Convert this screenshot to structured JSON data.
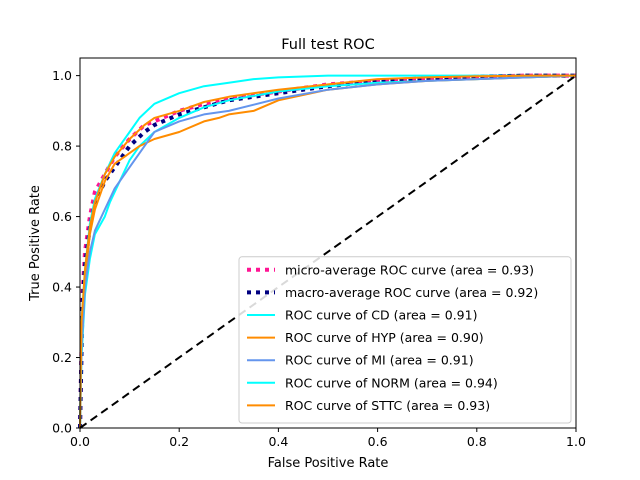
{
  "chart_data": {
    "type": "line",
    "title": "Full test ROC",
    "xlabel": "False Positive Rate",
    "ylabel": "True Positive Rate",
    "xlim": [
      0.0,
      1.0
    ],
    "ylim": [
      0.0,
      1.05
    ],
    "xticks": [
      "0.0",
      "0.2",
      "0.4",
      "0.6",
      "0.8",
      "1.0"
    ],
    "yticks": [
      "0.0",
      "0.2",
      "0.4",
      "0.6",
      "0.8",
      "1.0"
    ],
    "grid": false,
    "legend_position": "lower right",
    "series": [
      {
        "name": "micro-average ROC curve (area = 0.93)",
        "color": "#ff1493",
        "style": "dotted",
        "x": [
          0,
          0.005,
          0.01,
          0.02,
          0.03,
          0.05,
          0.07,
          0.1,
          0.13,
          0.15,
          0.2,
          0.25,
          0.3,
          0.4,
          0.5,
          0.6,
          0.7,
          0.8,
          0.9,
          1.0
        ],
        "y": [
          0,
          0.38,
          0.5,
          0.6,
          0.67,
          0.72,
          0.77,
          0.82,
          0.86,
          0.87,
          0.9,
          0.92,
          0.935,
          0.955,
          0.975,
          0.985,
          0.993,
          0.997,
          1.0,
          1.0
        ]
      },
      {
        "name": "macro-average ROC curve (area = 0.92)",
        "color": "#000080",
        "style": "dotted",
        "x": [
          0,
          0.005,
          0.01,
          0.02,
          0.03,
          0.05,
          0.07,
          0.1,
          0.13,
          0.15,
          0.2,
          0.25,
          0.3,
          0.4,
          0.5,
          0.6,
          0.7,
          0.8,
          0.9,
          1.0
        ],
        "y": [
          0,
          0.35,
          0.46,
          0.57,
          0.64,
          0.7,
          0.74,
          0.8,
          0.84,
          0.86,
          0.89,
          0.91,
          0.93,
          0.95,
          0.97,
          0.985,
          0.99,
          0.997,
          1.0,
          1.0
        ]
      },
      {
        "name": "ROC curve of CD (area = 0.91)",
        "color": "#00ffff",
        "style": "solid",
        "x": [
          0,
          0.003,
          0.01,
          0.02,
          0.03,
          0.05,
          0.06,
          0.08,
          0.1,
          0.12,
          0.15,
          0.2,
          0.25,
          0.3,
          0.4,
          0.5,
          0.6,
          0.7,
          0.8,
          0.9,
          1.0
        ],
        "y": [
          0,
          0.2,
          0.38,
          0.48,
          0.55,
          0.6,
          0.64,
          0.7,
          0.76,
          0.8,
          0.84,
          0.88,
          0.91,
          0.93,
          0.955,
          0.97,
          0.98,
          0.985,
          0.99,
          0.995,
          1.0
        ]
      },
      {
        "name": "ROC curve of HYP (area = 0.90)",
        "color": "#ff8c00",
        "style": "solid",
        "x": [
          0,
          0.003,
          0.01,
          0.02,
          0.03,
          0.05,
          0.07,
          0.1,
          0.12,
          0.15,
          0.2,
          0.25,
          0.28,
          0.3,
          0.35,
          0.4,
          0.5,
          0.6,
          0.7,
          0.8,
          0.9,
          1.0
        ],
        "y": [
          0,
          0.25,
          0.42,
          0.55,
          0.62,
          0.7,
          0.75,
          0.78,
          0.8,
          0.82,
          0.84,
          0.87,
          0.88,
          0.89,
          0.9,
          0.93,
          0.96,
          0.975,
          0.985,
          0.99,
          0.995,
          1.0
        ]
      },
      {
        "name": "ROC curve of MI (area = 0.91)",
        "color": "#6495ed",
        "style": "solid",
        "x": [
          0,
          0.003,
          0.01,
          0.02,
          0.03,
          0.05,
          0.07,
          0.1,
          0.13,
          0.15,
          0.2,
          0.25,
          0.3,
          0.4,
          0.5,
          0.6,
          0.7,
          0.8,
          0.9,
          1.0
        ],
        "y": [
          0,
          0.22,
          0.4,
          0.5,
          0.56,
          0.62,
          0.68,
          0.74,
          0.8,
          0.84,
          0.87,
          0.89,
          0.9,
          0.935,
          0.96,
          0.975,
          0.985,
          0.99,
          0.995,
          1.0
        ]
      },
      {
        "name": "ROC curve of NORM (area = 0.94)",
        "color": "#00ffff",
        "style": "solid",
        "x": [
          0,
          0.003,
          0.01,
          0.02,
          0.03,
          0.05,
          0.07,
          0.1,
          0.12,
          0.15,
          0.2,
          0.25,
          0.3,
          0.35,
          0.4,
          0.5,
          0.6,
          0.7,
          0.8,
          0.9,
          1.0
        ],
        "y": [
          0,
          0.3,
          0.45,
          0.58,
          0.65,
          0.72,
          0.78,
          0.84,
          0.88,
          0.92,
          0.95,
          0.97,
          0.98,
          0.99,
          0.995,
          1.0,
          1.0,
          1.0,
          1.0,
          1.0,
          1.0
        ]
      },
      {
        "name": "ROC curve of STTC (area = 0.93)",
        "color": "#ff8c00",
        "style": "solid",
        "x": [
          0,
          0.003,
          0.01,
          0.02,
          0.03,
          0.05,
          0.07,
          0.1,
          0.13,
          0.15,
          0.2,
          0.25,
          0.3,
          0.4,
          0.5,
          0.6,
          0.7,
          0.8,
          0.9,
          1.0
        ],
        "y": [
          0,
          0.3,
          0.45,
          0.57,
          0.64,
          0.72,
          0.77,
          0.82,
          0.86,
          0.88,
          0.9,
          0.925,
          0.94,
          0.96,
          0.975,
          0.99,
          0.995,
          0.998,
          1.0,
          1.0
        ]
      }
    ],
    "reference_line": {
      "x": [
        0,
        1
      ],
      "y": [
        0,
        1
      ],
      "color": "#000000",
      "style": "dashed"
    }
  }
}
